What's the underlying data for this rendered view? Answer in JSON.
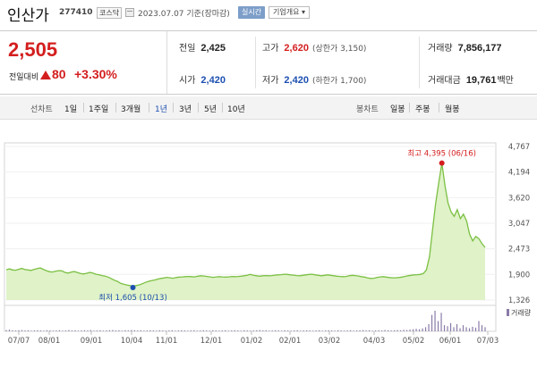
{
  "header": {
    "name": "인산가",
    "code": "277410",
    "market": "코스닥",
    "date": "2023.07.07 기준(장마감)",
    "realtime": "실시간",
    "company": "기업개요 ▾"
  },
  "price": {
    "current": "2,505",
    "change_label": "전일대비",
    "change_value": "80",
    "change_pct": "+3.30%"
  },
  "stats": {
    "prev_close": {
      "label": "전일",
      "value": "2,425"
    },
    "high": {
      "label": "고가",
      "value": "2,620",
      "sub": "(상한가 3,150)"
    },
    "volume": {
      "label": "거래량",
      "value": "7,856,177"
    },
    "open": {
      "label": "시가",
      "value": "2,420"
    },
    "low": {
      "label": "저가",
      "value": "2,420",
      "sub": "(하한가 1,700)"
    },
    "amount": {
      "label": "거래대금",
      "value": "19,761",
      "unit": "백만"
    }
  },
  "toolbar": {
    "line_label": "선차트",
    "periods": [
      "1일",
      "1주일",
      "3개월",
      "1년",
      "3년",
      "5년",
      "10년"
    ],
    "active_period": "1년",
    "candle_label": "봉차트",
    "candles": [
      "일봉",
      "주봉",
      "월봉"
    ]
  },
  "chart_data": {
    "type": "area",
    "x_labels": [
      "07/07",
      "08/01",
      "09/01",
      "10/04",
      "11/01",
      "12/01",
      "01/02",
      "02/01",
      "03/02",
      "04/03",
      "05/02",
      "06/01",
      "07/03"
    ],
    "y_ticks": [
      1326,
      1900,
      2473,
      3047,
      3620,
      4194,
      4767
    ],
    "y_tick_labels": [
      "1,326",
      "1,900",
      "2,473",
      "3,047",
      "3,620",
      "4,194",
      "4,767"
    ],
    "ylim": [
      1326,
      4767
    ],
    "series": [
      {
        "values": [
          2005,
          2025,
          2000,
          1995,
          2015,
          2035,
          2010,
          2000,
          1990,
          2010,
          2030,
          2045,
          2015,
          1985,
          1960,
          1955,
          1975,
          1985,
          1980,
          1945,
          1930,
          1950,
          1965,
          1945,
          1920,
          1910,
          1925,
          1945,
          1930,
          1905,
          1895,
          1875,
          1860,
          1840,
          1805,
          1770,
          1745,
          1700,
          1680,
          1665,
          1650,
          1640,
          1650,
          1665,
          1690,
          1720,
          1745,
          1760,
          1775,
          1795,
          1810,
          1820,
          1835,
          1825,
          1815,
          1830,
          1840,
          1845,
          1850,
          1855,
          1850,
          1845,
          1860,
          1870,
          1865,
          1855,
          1845,
          1835,
          1845,
          1850,
          1845,
          1840,
          1845,
          1855,
          1850,
          1855,
          1860,
          1870,
          1880,
          1900,
          1880,
          1870,
          1860,
          1870,
          1875,
          1870,
          1875,
          1885,
          1890,
          1895,
          1905,
          1900,
          1890,
          1885,
          1875,
          1870,
          1880,
          1890,
          1900,
          1905,
          1890,
          1880,
          1870,
          1880,
          1890,
          1880,
          1870,
          1860,
          1855,
          1850,
          1855,
          1870,
          1880,
          1875,
          1865,
          1850,
          1840,
          1820,
          1810,
          1815,
          1830,
          1845,
          1850,
          1840,
          1830,
          1825,
          1825,
          1830,
          1840,
          1855,
          1870,
          1880,
          1890,
          1895,
          1900,
          1920,
          2000,
          2300,
          2900,
          3500,
          3950,
          4395,
          3900,
          3500,
          3300,
          3200,
          3350,
          3150,
          3250,
          3100,
          2800,
          2650,
          2750,
          2700,
          2590,
          2505
        ]
      }
    ],
    "high": {
      "label": "최고 4,395 (06/16)",
      "value": 4395
    },
    "low": {
      "label": "최저 1,605 (10/13)",
      "value": 1605
    },
    "volume_bars": [
      0.06,
      0.08,
      0.05,
      0.04,
      0.05,
      0.06,
      0.04,
      0.05,
      0.03,
      0.04,
      0.05,
      0.04,
      0.03,
      0.05,
      0.04,
      0.03,
      0.04,
      0.05,
      0.03,
      0.04,
      0.06,
      0.04,
      0.05,
      0.03,
      0.04,
      0.05,
      0.04,
      0.06,
      0.03,
      0.04,
      0.05,
      0.03,
      0.04,
      0.05,
      0.06,
      0.04,
      0.05,
      0.03,
      0.05,
      0.04,
      0.06,
      0.05,
      0.04,
      0.05,
      0.03,
      0.04,
      0.05,
      0.04,
      0.03,
      0.05,
      0.04,
      0.03,
      0.04,
      0.05,
      0.03,
      0.04,
      0.05,
      0.04,
      0.03,
      0.04,
      0.05,
      0.03,
      0.04,
      0.05,
      0.04,
      0.03,
      0.05,
      0.04,
      0.03,
      0.04,
      0.05,
      0.03,
      0.04,
      0.05,
      0.04,
      0.03,
      0.05,
      0.04,
      0.03,
      0.04,
      0.05,
      0.06,
      0.04,
      0.05,
      0.03,
      0.04,
      0.05,
      0.04,
      0.03,
      0.05,
      0.04,
      0.03,
      0.04,
      0.05,
      0.03,
      0.04,
      0.05,
      0.04,
      0.03,
      0.04,
      0.05,
      0.03,
      0.04,
      0.05,
      0.04,
      0.03,
      0.05,
      0.04,
      0.03,
      0.04,
      0.05,
      0.03,
      0.04,
      0.05,
      0.06,
      0.04,
      0.05,
      0.03,
      0.04,
      0.05,
      0.04,
      0.06,
      0.05,
      0.04,
      0.05,
      0.06,
      0.05,
      0.07,
      0.06,
      0.08,
      0.1,
      0.12,
      0.1,
      0.14,
      0.2,
      0.35,
      0.8,
      1.0,
      0.5,
      0.9,
      0.3,
      0.25,
      0.4,
      0.2,
      0.35,
      0.15,
      0.3,
      0.2,
      0.15,
      0.22,
      0.18,
      0.5,
      0.3,
      0.2
    ],
    "volume_label": "거래량"
  },
  "colors": {
    "up": "#d41e1e",
    "down": "#1d4fb0",
    "line": "#7bc043",
    "fill": "#dff2c8"
  }
}
